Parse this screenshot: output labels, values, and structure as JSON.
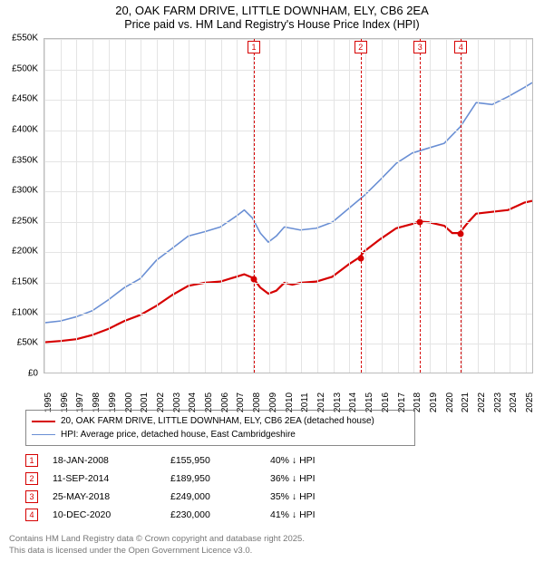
{
  "title_line1": "20, OAK FARM DRIVE, LITTLE DOWNHAM, ELY, CB6 2EA",
  "title_line2": "Price paid vs. HM Land Registry's House Price Index (HPI)",
  "chart": {
    "type": "line",
    "background_color": "#ffffff",
    "grid_color": "#e4e4e4",
    "border_color": "#bbbbbb",
    "xlim": [
      1995,
      2025.5
    ],
    "ylim": [
      0,
      550000
    ],
    "ytick_step": 50000,
    "ytick_labels": [
      "£0",
      "£50K",
      "£100K",
      "£150K",
      "£200K",
      "£250K",
      "£300K",
      "£350K",
      "£400K",
      "£450K",
      "£500K",
      "£550K"
    ],
    "xtick_years": [
      1995,
      1996,
      1997,
      1998,
      1999,
      2000,
      2001,
      2002,
      2003,
      2004,
      2005,
      2006,
      2007,
      2008,
      2009,
      2010,
      2011,
      2012,
      2013,
      2014,
      2015,
      2016,
      2017,
      2018,
      2019,
      2020,
      2021,
      2022,
      2023,
      2024,
      2025
    ],
    "label_fontsize": 10,
    "series": [
      {
        "name": "price_paid",
        "color": "#d60000",
        "line_width": 2.2,
        "points": [
          [
            1995.0,
            50000
          ],
          [
            1996.0,
            52000
          ],
          [
            1997.0,
            55000
          ],
          [
            1998.0,
            62000
          ],
          [
            1999.0,
            72000
          ],
          [
            2000.0,
            85000
          ],
          [
            2001.0,
            95000
          ],
          [
            2002.0,
            110000
          ],
          [
            2003.0,
            128000
          ],
          [
            2004.0,
            143000
          ],
          [
            2005.0,
            148000
          ],
          [
            2006.0,
            150000
          ],
          [
            2007.0,
            158000
          ],
          [
            2007.5,
            162000
          ],
          [
            2008.05,
            155950
          ],
          [
            2008.5,
            140000
          ],
          [
            2009.0,
            130000
          ],
          [
            2009.5,
            135000
          ],
          [
            2010.0,
            148000
          ],
          [
            2010.5,
            145000
          ],
          [
            2011.0,
            148000
          ],
          [
            2012.0,
            150000
          ],
          [
            2013.0,
            158000
          ],
          [
            2014.0,
            178000
          ],
          [
            2014.7,
            189950
          ],
          [
            2015.0,
            200000
          ],
          [
            2016.0,
            220000
          ],
          [
            2017.0,
            238000
          ],
          [
            2018.0,
            245000
          ],
          [
            2018.4,
            249000
          ],
          [
            2019.0,
            248000
          ],
          [
            2020.0,
            242000
          ],
          [
            2020.5,
            230000
          ],
          [
            2020.95,
            230000
          ],
          [
            2021.5,
            248000
          ],
          [
            2022.0,
            262000
          ],
          [
            2023.0,
            265000
          ],
          [
            2024.0,
            268000
          ],
          [
            2025.0,
            280000
          ],
          [
            2025.5,
            283000
          ]
        ]
      },
      {
        "name": "hpi",
        "color": "#6a8fd4",
        "line_width": 1.6,
        "points": [
          [
            1995.0,
            82000
          ],
          [
            1996.0,
            85000
          ],
          [
            1997.0,
            92000
          ],
          [
            1998.0,
            102000
          ],
          [
            1999.0,
            120000
          ],
          [
            2000.0,
            140000
          ],
          [
            2001.0,
            155000
          ],
          [
            2002.0,
            185000
          ],
          [
            2003.0,
            205000
          ],
          [
            2004.0,
            225000
          ],
          [
            2005.0,
            232000
          ],
          [
            2006.0,
            240000
          ],
          [
            2007.0,
            258000
          ],
          [
            2007.5,
            268000
          ],
          [
            2008.0,
            255000
          ],
          [
            2008.5,
            230000
          ],
          [
            2009.0,
            215000
          ],
          [
            2009.5,
            225000
          ],
          [
            2010.0,
            240000
          ],
          [
            2011.0,
            235000
          ],
          [
            2012.0,
            238000
          ],
          [
            2013.0,
            248000
          ],
          [
            2014.0,
            270000
          ],
          [
            2015.0,
            292000
          ],
          [
            2016.0,
            318000
          ],
          [
            2017.0,
            345000
          ],
          [
            2018.0,
            362000
          ],
          [
            2019.0,
            370000
          ],
          [
            2020.0,
            378000
          ],
          [
            2021.0,
            405000
          ],
          [
            2022.0,
            445000
          ],
          [
            2023.0,
            442000
          ],
          [
            2024.0,
            455000
          ],
          [
            2025.0,
            470000
          ],
          [
            2025.5,
            478000
          ]
        ]
      }
    ],
    "events": [
      {
        "n": "1",
        "year": 2008.05,
        "y": 155950
      },
      {
        "n": "2",
        "year": 2014.7,
        "y": 189950
      },
      {
        "n": "3",
        "year": 2018.4,
        "y": 249000
      },
      {
        "n": "4",
        "year": 2020.95,
        "y": 230000
      }
    ]
  },
  "legend": {
    "series1_label": "20, OAK FARM DRIVE, LITTLE DOWNHAM, ELY, CB6 2EA (detached house)",
    "series2_label": "HPI: Average price, detached house, East Cambridgeshire",
    "series1_color": "#d60000",
    "series2_color": "#6a8fd4"
  },
  "transactions": [
    {
      "n": "1",
      "date": "18-JAN-2008",
      "price": "£155,950",
      "diff": "40% ↓ HPI"
    },
    {
      "n": "2",
      "date": "11-SEP-2014",
      "price": "£189,950",
      "diff": "36% ↓ HPI"
    },
    {
      "n": "3",
      "date": "25-MAY-2018",
      "price": "£249,000",
      "diff": "35% ↓ HPI"
    },
    {
      "n": "4",
      "date": "10-DEC-2020",
      "price": "£230,000",
      "diff": "41% ↓ HPI"
    }
  ],
  "footer_line1": "Contains HM Land Registry data © Crown copyright and database right 2025.",
  "footer_line2": "This data is licensed under the Open Government Licence v3.0."
}
